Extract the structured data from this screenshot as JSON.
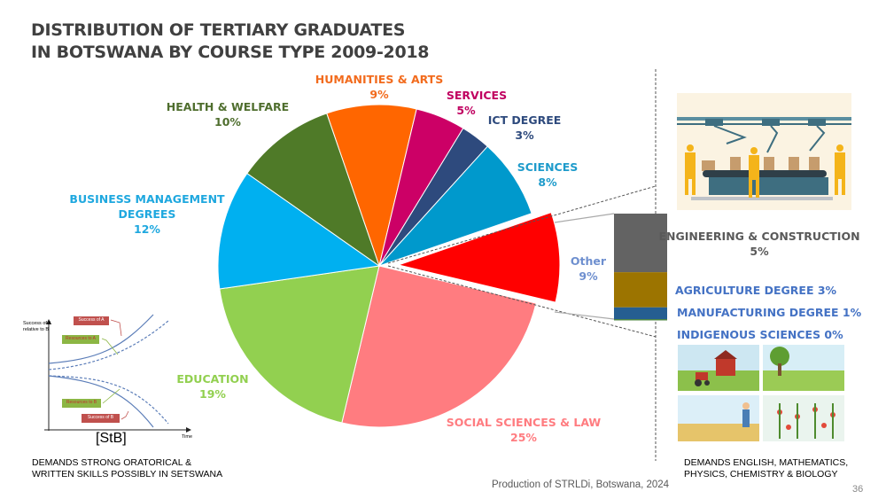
{
  "title_lines": [
    "DISTRIBUTION OF TERTIARY GRADUATES",
    "IN BOTSWANA BY COURSE TYPE 2009-2018"
  ],
  "chart_data": {
    "type": "pie",
    "subtype": "bar-of-pie",
    "title": "DISTRIBUTION OF TERTIARY GRADUATES IN BOTSWANA BY COURSE TYPE 2009-2018",
    "slices": [
      {
        "label": "HUMANITIES & ARTS",
        "value": 9,
        "display": "9%",
        "color": "#FF6600",
        "text_color": "#F26B1D"
      },
      {
        "label": "SERVICES",
        "value": 5,
        "display": "5%",
        "color": "#CC0066",
        "text_color": "#C00060"
      },
      {
        "label": "ICT DEGREE",
        "value": 3,
        "display": "3%",
        "color": "#2E4A7D",
        "text_color": "#2E4A7D"
      },
      {
        "label": "SCIENCES",
        "value": 8,
        "display": "8%",
        "color": "#0099CC",
        "text_color": "#1E9BCB"
      },
      {
        "label": "Other",
        "value": 9,
        "display": "9%",
        "color": "#FF0000",
        "text_color": "#6E8FCF",
        "exploded": true
      },
      {
        "label": "SOCIAL SCIENCES & LAW",
        "value": 25,
        "display": "25%",
        "color": "#FF7C80",
        "text_color": "#FF7C80"
      },
      {
        "label": "EDUCATION",
        "value": 19,
        "display": "19%",
        "color": "#92D050",
        "text_color": "#92D050"
      },
      {
        "label": "BUSINESS MANAGEMENT DEGREES",
        "value": 12,
        "display": "12%",
        "color": "#00B0F0",
        "text_color": "#1FA8DF"
      },
      {
        "label": "HEALTH & WELFARE",
        "value": 10,
        "display": "10%",
        "color": "#4F7A28",
        "text_color": "#4F6E2E"
      }
    ],
    "other_breakdown": [
      {
        "label": "ENGINEERING & CONSTRUCTION",
        "value": 5,
        "display": "5%",
        "color": "#636363",
        "text_color": "#595959"
      },
      {
        "label": "AGRICULTURE DEGREE",
        "value": 3,
        "display": "3%",
        "color": "#9C7400",
        "text_color": "#4472C4"
      },
      {
        "label": "MANUFACTURING DEGREE",
        "value": 1,
        "display": "1%",
        "color": "#255E91",
        "text_color": "#4472C4"
      },
      {
        "label": "INDIGENOUS SCIENCES",
        "value": 0,
        "display": "0%",
        "color": "#4E8542",
        "text_color": "#4472C4"
      }
    ]
  },
  "labels": {
    "humanities": [
      "HUMANITIES & ARTS",
      "9%"
    ],
    "services": [
      "SERVICES",
      "5%"
    ],
    "ict": [
      "ICT DEGREE",
      "3%"
    ],
    "sciences": [
      "SCIENCES",
      "8%"
    ],
    "other": [
      "Other",
      "9%"
    ],
    "social": [
      "SOCIAL SCIENCES & LAW",
      "25%"
    ],
    "education": [
      "EDUCATION",
      "19%"
    ],
    "business": [
      "BUSINESS MANAGEMENT",
      "DEGREES",
      "12%"
    ],
    "health": [
      "HEALTH & WELFARE",
      "10%"
    ],
    "engineering": [
      "ENGINEERING & CONSTRUCTION",
      "5%"
    ],
    "agriculture": "AGRICULTURE DEGREE  3%",
    "manufacturing": "MANUFACTURING DEGREE 1%",
    "indigenous": "INDIGENOUS SCIENCES 0%"
  },
  "stb_diagram": {
    "y_axis": [
      "Success of A",
      "relative to B"
    ],
    "x_axis": "Time",
    "success_a": "Success of A",
    "resources_a": "Resources to A",
    "resources_b": "Resources to B",
    "success_b": "Success of B",
    "caption": "[StB]"
  },
  "left_caption": [
    "DEMANDS STRONG ORATORICAL &",
    "WRITTEN SKILLS POSSIBLY IN SETSWANA"
  ],
  "right_caption": [
    "DEMANDS ENGLISH, MATHEMATICS,",
    "PHYSICS, CHEMISTRY & BIOLOGY"
  ],
  "footer": "Production of STRLDi, Botswana, 2024",
  "page_number": "36",
  "images": {
    "factory": "assembly-line-illustration",
    "farms": "agriculture-illustrations"
  }
}
